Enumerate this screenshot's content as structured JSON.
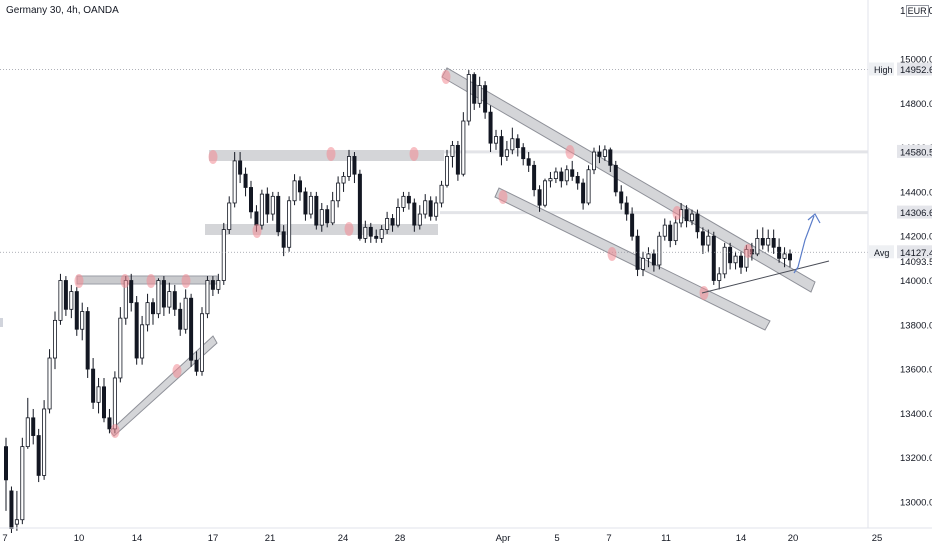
{
  "header": {
    "title": "Germany 30, 4h, OANDA"
  },
  "currency": {
    "prefix": "1",
    "code": "EUR",
    "suffix": "0"
  },
  "price_badges": {
    "high_label": "High",
    "high_value": "14952.6",
    "level_1": "14580.5",
    "level_2": "14306.6",
    "avg_label": "Avg",
    "avg_value": "14127.4",
    "last_value": "14093.5"
  },
  "colors": {
    "up_candle": "#ffffff",
    "down_candle": "#131722",
    "channel_fill": "#d4d5d8",
    "touch_marker": "#f28b94",
    "projection": "#5b7dc9"
  },
  "chart_data": {
    "type": "candlestick",
    "title": "Germany 30, 4h, OANDA",
    "instrument": "Germany 30",
    "timeframe": "4h",
    "source": "OANDA",
    "currency": "EUR",
    "y_axis": {
      "ticks": [
        15000,
        14800,
        14600,
        14400,
        14200,
        14000,
        13800,
        13600,
        13400,
        13200,
        13000
      ],
      "range": [
        12890,
        15310
      ]
    },
    "x_axis": {
      "ticks": [
        "7",
        "10",
        "14",
        "17",
        "21",
        "24",
        "28",
        "Apr",
        "5",
        "7",
        "11",
        "14",
        "20",
        "25"
      ]
    },
    "markers": {
      "high": 14952.6,
      "avg": 14127.4,
      "last": 14093.5
    },
    "levels": [
      14580.5,
      14306.6
    ],
    "ohlc": [
      [
        13250,
        13100,
        13290,
        12960
      ],
      [
        13050,
        12880,
        13070,
        12860
      ],
      [
        12900,
        12920,
        13050,
        12870
      ],
      [
        12920,
        13250,
        13290,
        12900
      ],
      [
        13250,
        13380,
        13470,
        13240
      ],
      [
        13380,
        13300,
        13420,
        13260
      ],
      [
        13300,
        13120,
        13330,
        13090
      ],
      [
        13120,
        13420,
        13460,
        13100
      ],
      [
        13420,
        13650,
        13690,
        13400
      ],
      [
        13650,
        13820,
        13860,
        13600
      ],
      [
        13820,
        14000,
        14030,
        13800
      ],
      [
        14000,
        13870,
        14020,
        13840
      ],
      [
        13870,
        13950,
        13980,
        13830
      ],
      [
        13950,
        13780,
        13970,
        13750
      ],
      [
        13780,
        13860,
        13900,
        13730
      ],
      [
        13860,
        13600,
        13880,
        13560
      ],
      [
        13600,
        13450,
        13650,
        13420
      ],
      [
        13450,
        13520,
        13560,
        13400
      ],
      [
        13520,
        13380,
        13560,
        13360
      ],
      [
        13380,
        13330,
        13420,
        13310
      ],
      [
        13330,
        13560,
        13590,
        13310
      ],
      [
        13560,
        13830,
        13880,
        13540
      ],
      [
        13830,
        14000,
        14020,
        13800
      ],
      [
        14000,
        13900,
        14030,
        13860
      ],
      [
        13900,
        13650,
        13930,
        13620
      ],
      [
        13650,
        13800,
        13840,
        13620
      ],
      [
        13800,
        13900,
        13940,
        13770
      ],
      [
        13900,
        13850,
        13920,
        13800
      ],
      [
        13850,
        14000,
        14010,
        13830
      ],
      [
        14000,
        13880,
        14020,
        13840
      ],
      [
        13880,
        13950,
        13990,
        13850
      ],
      [
        13950,
        13870,
        13980,
        13840
      ],
      [
        13870,
        13780,
        13900,
        13750
      ],
      [
        13780,
        13920,
        13960,
        13760
      ],
      [
        13920,
        13640,
        13940,
        13610
      ],
      [
        13640,
        13590,
        13680,
        13570
      ],
      [
        13590,
        13850,
        13880,
        13570
      ],
      [
        13850,
        14000,
        14020,
        13830
      ],
      [
        14000,
        13960,
        14020,
        13930
      ],
      [
        13960,
        14000,
        14030,
        13940
      ],
      [
        14000,
        14230,
        14260,
        13980
      ],
      [
        14230,
        14350,
        14380,
        14210
      ],
      [
        14350,
        14540,
        14580,
        14330
      ],
      [
        14540,
        14480,
        14580,
        14440
      ],
      [
        14480,
        14420,
        14510,
        14380
      ],
      [
        14420,
        14310,
        14450,
        14280
      ],
      [
        14310,
        14250,
        14340,
        14220
      ],
      [
        14250,
        14390,
        14410,
        14230
      ],
      [
        14390,
        14300,
        14420,
        14260
      ],
      [
        14300,
        14380,
        14400,
        14270
      ],
      [
        14380,
        14220,
        14400,
        14200
      ],
      [
        14220,
        14150,
        14250,
        14110
      ],
      [
        14150,
        14360,
        14380,
        14130
      ],
      [
        14360,
        14450,
        14480,
        14340
      ],
      [
        14450,
        14400,
        14470,
        14360
      ],
      [
        14400,
        14300,
        14420,
        14270
      ],
      [
        14300,
        14380,
        14400,
        14280
      ],
      [
        14380,
        14250,
        14400,
        14230
      ],
      [
        14250,
        14320,
        14350,
        14220
      ],
      [
        14320,
        14260,
        14340,
        14240
      ],
      [
        14260,
        14360,
        14400,
        14250
      ],
      [
        14360,
        14440,
        14470,
        14330
      ],
      [
        14440,
        14470,
        14490,
        14400
      ],
      [
        14470,
        14560,
        14590,
        14450
      ],
      [
        14560,
        14480,
        14580,
        14440
      ],
      [
        14480,
        14190,
        14500,
        14180
      ],
      [
        14190,
        14240,
        14270,
        14170
      ],
      [
        14240,
        14200,
        14260,
        14170
      ],
      [
        14200,
        14190,
        14230,
        14170
      ],
      [
        14190,
        14230,
        14250,
        14170
      ],
      [
        14230,
        14280,
        14310,
        14210
      ],
      [
        14280,
        14250,
        14300,
        14220
      ],
      [
        14250,
        14330,
        14370,
        14240
      ],
      [
        14330,
        14380,
        14400,
        14310
      ],
      [
        14380,
        14350,
        14400,
        14320
      ],
      [
        14350,
        14250,
        14370,
        14220
      ],
      [
        14250,
        14300,
        14340,
        14230
      ],
      [
        14300,
        14360,
        14390,
        14280
      ],
      [
        14360,
        14290,
        14380,
        14270
      ],
      [
        14290,
        14350,
        14380,
        14270
      ],
      [
        14350,
        14430,
        14450,
        14330
      ],
      [
        14430,
        14560,
        14590,
        14420
      ],
      [
        14560,
        14610,
        14630,
        14510
      ],
      [
        14610,
        14480,
        14630,
        14450
      ],
      [
        14480,
        14720,
        14760,
        14470
      ],
      [
        14720,
        14930,
        14950,
        14700
      ],
      [
        14930,
        14800,
        14940,
        14770
      ],
      [
        14800,
        14880,
        14920,
        14780
      ],
      [
        14880,
        14760,
        14900,
        14730
      ],
      [
        14760,
        14620,
        14790,
        14580
      ],
      [
        14620,
        14650,
        14680,
        14590
      ],
      [
        14650,
        14560,
        14680,
        14520
      ],
      [
        14560,
        14590,
        14630,
        14540
      ],
      [
        14590,
        14640,
        14690,
        14570
      ],
      [
        14640,
        14600,
        14660,
        14560
      ],
      [
        14600,
        14550,
        14620,
        14520
      ],
      [
        14550,
        14520,
        14580,
        14490
      ],
      [
        14520,
        14410,
        14540,
        14380
      ],
      [
        14410,
        14340,
        14430,
        14310
      ],
      [
        14340,
        14450,
        14460,
        14330
      ],
      [
        14450,
        14460,
        14490,
        14420
      ],
      [
        14460,
        14490,
        14510,
        14440
      ],
      [
        14490,
        14450,
        14510,
        14420
      ],
      [
        14450,
        14500,
        14520,
        14430
      ],
      [
        14500,
        14470,
        14540,
        14450
      ],
      [
        14470,
        14440,
        14490,
        14410
      ],
      [
        14440,
        14350,
        14460,
        14320
      ],
      [
        14350,
        14500,
        14520,
        14340
      ],
      [
        14500,
        14580,
        14600,
        14480
      ],
      [
        14580,
        14560,
        14610,
        14530
      ],
      [
        14560,
        14590,
        14610,
        14540
      ],
      [
        14590,
        14520,
        14600,
        14490
      ],
      [
        14520,
        14400,
        14540,
        14380
      ],
      [
        14400,
        14350,
        14430,
        14320
      ],
      [
        14350,
        14300,
        14380,
        14270
      ],
      [
        14300,
        14200,
        14330,
        14180
      ],
      [
        14200,
        14050,
        14230,
        14020
      ],
      [
        14050,
        14100,
        14130,
        14020
      ],
      [
        14100,
        14120,
        14150,
        14060
      ],
      [
        14120,
        14070,
        14140,
        14040
      ],
      [
        14070,
        14200,
        14220,
        14050
      ],
      [
        14200,
        14250,
        14280,
        14180
      ],
      [
        14250,
        14180,
        14270,
        14150
      ],
      [
        14180,
        14260,
        14290,
        14160
      ],
      [
        14260,
        14320,
        14350,
        14240
      ],
      [
        14320,
        14270,
        14340,
        14240
      ],
      [
        14270,
        14300,
        14320,
        14250
      ],
      [
        14300,
        14220,
        14320,
        14190
      ],
      [
        14220,
        14160,
        14240,
        14120
      ],
      [
        14160,
        14200,
        14230,
        14130
      ],
      [
        14200,
        14000,
        14220,
        13980
      ],
      [
        14000,
        14030,
        14060,
        13960
      ],
      [
        14030,
        14150,
        14170,
        14010
      ],
      [
        14150,
        14080,
        14170,
        14050
      ],
      [
        14080,
        14110,
        14130,
        14050
      ],
      [
        14110,
        14060,
        14130,
        14030
      ],
      [
        14060,
        14140,
        14160,
        14040
      ],
      [
        14140,
        14120,
        14170,
        14090
      ],
      [
        14120,
        14190,
        14230,
        14110
      ],
      [
        14190,
        14160,
        14240,
        14140
      ],
      [
        14160,
        14190,
        14230,
        14130
      ],
      [
        14190,
        14150,
        14230,
        14120
      ],
      [
        14150,
        14100,
        14190,
        14080
      ],
      [
        14100,
        14120,
        14150,
        14060
      ],
      [
        14120,
        14093,
        14140,
        14060
      ]
    ]
  }
}
